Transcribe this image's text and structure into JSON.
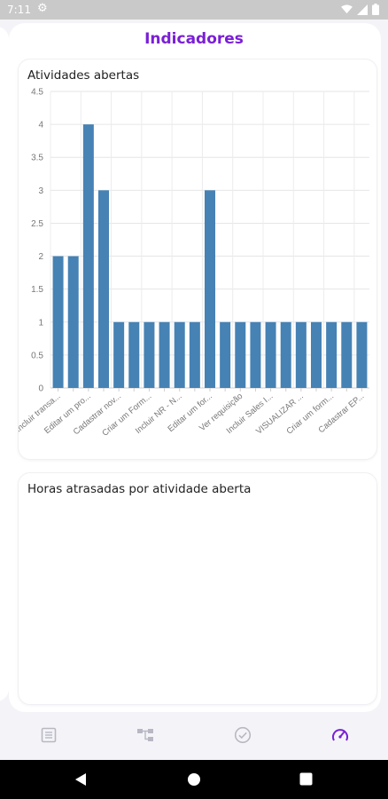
{
  "status_bar": {
    "time": "7:11"
  },
  "header": {
    "title": "Indicadores"
  },
  "chart_primary": {
    "title": "Atividades abertas"
  },
  "chart_data": [
    {
      "type": "bar",
      "title": "Atividades abertas",
      "categories": [
        "Incluir transa...",
        "",
        "Editar um pro...",
        "",
        "Cadastrar nov...",
        "",
        "Criar um Form...",
        "",
        "Incluir NR - N...",
        "",
        "Editar um for...",
        "",
        "Ver requisição",
        "",
        "Incluir Sales I...",
        "",
        "VISUALIZAR ...",
        "",
        "Criar um form...",
        "",
        "Cadastrar EP..."
      ],
      "values": [
        2,
        2,
        4,
        3,
        1,
        1,
        1,
        1,
        1,
        1,
        3,
        1,
        1,
        1,
        1,
        1,
        1,
        1,
        1,
        1,
        1
      ],
      "y_ticks": [
        "0",
        "0.5",
        "1",
        "1.5",
        "2",
        "2.5",
        "3",
        "3.5",
        "4",
        "4.5"
      ],
      "ylim": [
        0,
        4.5
      ],
      "grid": true,
      "color": "#4682b4"
    },
    {
      "type": "bar",
      "title": "Horas atrasadas por atividade aberta",
      "categories": [],
      "values": []
    }
  ],
  "chart_secondary": {
    "title": "Horas atrasadas por atividade aberta"
  },
  "bottom_nav": {
    "items": [
      {
        "icon": "list-icon",
        "active": false
      },
      {
        "icon": "hierarchy-icon",
        "active": false
      },
      {
        "icon": "check-circle-icon",
        "active": false
      },
      {
        "icon": "gauge-icon",
        "active": true
      }
    ],
    "active_color": "#7a1fd6",
    "inactive_color": "#b8b8c4"
  }
}
